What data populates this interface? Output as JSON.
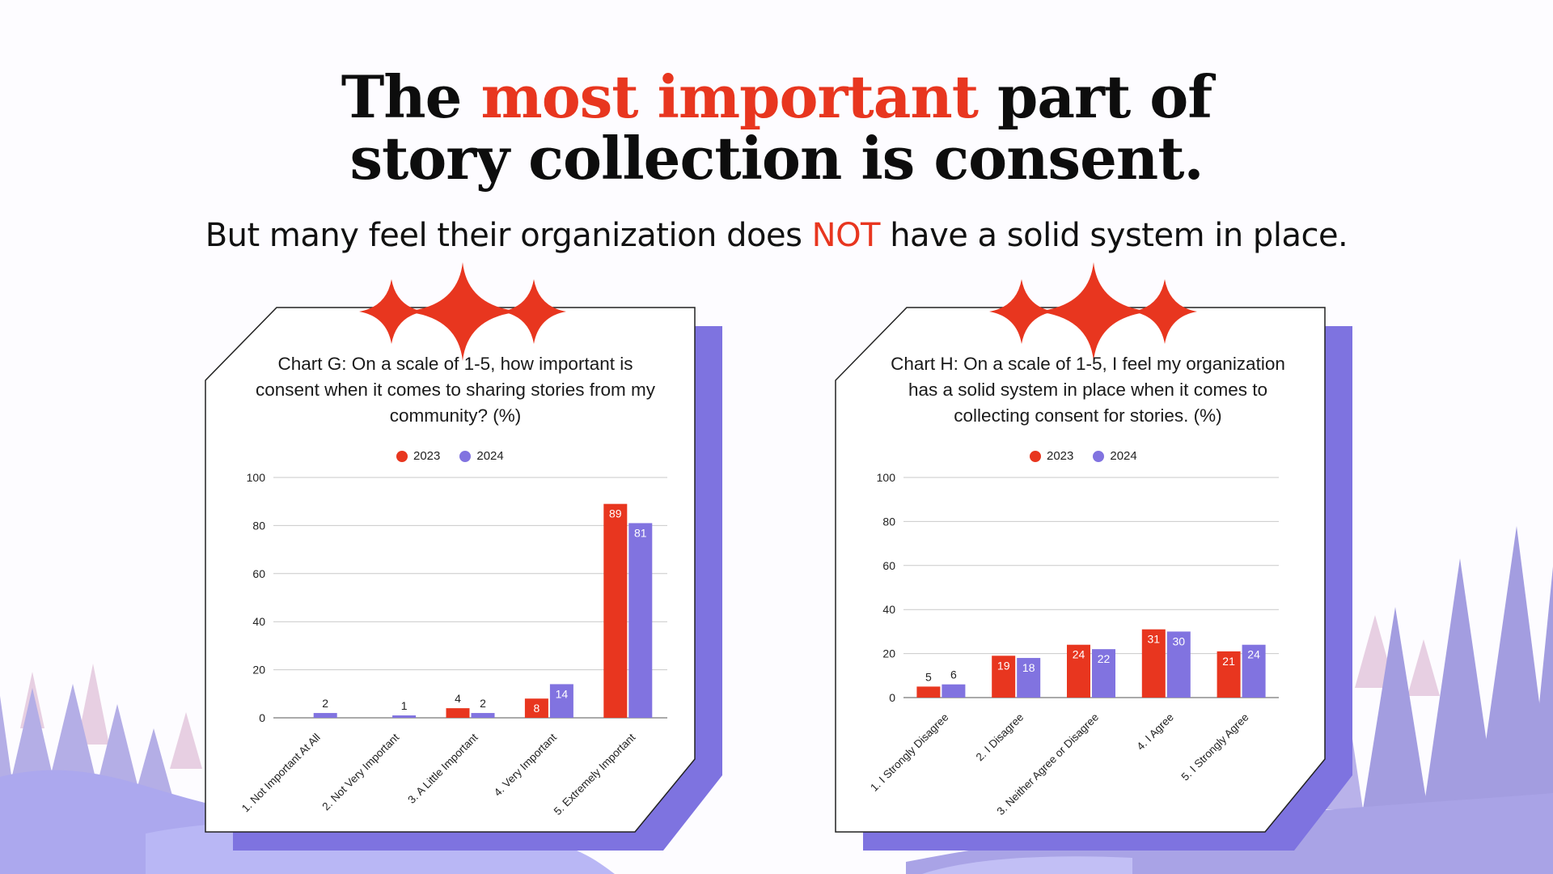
{
  "headline": {
    "part1": "The ",
    "highlight": "most important",
    "part2": " part of",
    "line2": "story collection is consent."
  },
  "subheadline": {
    "part1": "But many feel their organization does ",
    "highlight": "NOT",
    "part2": " have a solid system in place."
  },
  "colors": {
    "series_2023": "#e8361f",
    "series_2024": "#8173e0",
    "accent_red": "#e8361f",
    "shadow_purple": "#7e73e0"
  },
  "chart_data": [
    {
      "type": "bar",
      "title": "Chart G: On a scale of 1-5, how important is consent when it comes to sharing stories from my community? (%)",
      "categories": [
        "1. Not Important At All",
        "2. Not Very Important",
        "3. A Little Important",
        "4. Very Important",
        "5. Extremely Important"
      ],
      "series": [
        {
          "name": "2023",
          "values": [
            0,
            0,
            4,
            8,
            89
          ],
          "labels": [
            "",
            "",
            "4",
            "8",
            "89"
          ]
        },
        {
          "name": "2024",
          "values": [
            2,
            1,
            2,
            14,
            81
          ],
          "labels": [
            "2",
            "1",
            "2",
            "14",
            "81"
          ]
        }
      ],
      "ylim": [
        0,
        100
      ],
      "yticks": [
        0,
        20,
        40,
        60,
        80,
        100
      ],
      "grid": true,
      "legend": "top-center"
    },
    {
      "type": "bar",
      "title": "Chart H: On a scale of 1-5, I feel my organization has a solid system in place when it comes to collecting consent for stories. (%)",
      "categories": [
        "1. I Strongly Disagree",
        "2. I Disagree",
        "3. Neither Agree or Disagree",
        "4. I Agree",
        "5. I Strongly Agree"
      ],
      "series": [
        {
          "name": "2023",
          "values": [
            5,
            19,
            24,
            31,
            21
          ],
          "labels": [
            "5",
            "19",
            "24",
            "31",
            "21"
          ]
        },
        {
          "name": "2024",
          "values": [
            6,
            18,
            22,
            30,
            24
          ],
          "labels": [
            "6",
            "18",
            "22",
            "30",
            "24"
          ]
        }
      ],
      "ylim": [
        0,
        100
      ],
      "yticks": [
        0,
        20,
        40,
        60,
        80,
        100
      ],
      "grid": true,
      "legend": "top-center"
    }
  ]
}
